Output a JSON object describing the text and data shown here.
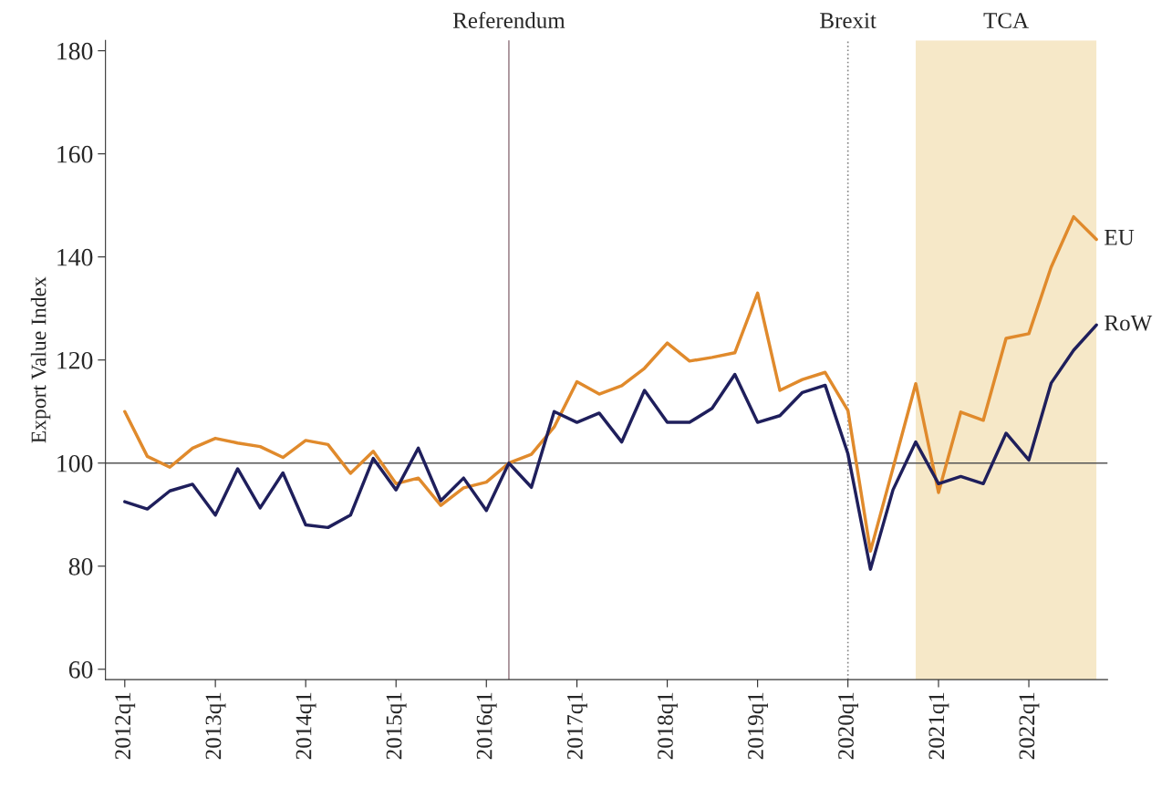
{
  "chart_data": {
    "type": "line",
    "ylabel": "Export Value Index",
    "x": [
      "2012-01",
      "2012-04",
      "2012-07",
      "2012-10",
      "2013-01",
      "2013-04",
      "2013-07",
      "2013-10",
      "2014-01",
      "2014-04",
      "2014-07",
      "2014-10",
      "2015-01",
      "2015-04",
      "2015-07",
      "2015-10",
      "2016-01",
      "2016-04",
      "2016-07",
      "2016-10",
      "2017-01",
      "2017-04",
      "2017-07",
      "2017-10",
      "2018-01",
      "2018-04",
      "2018-07",
      "2018-10",
      "2019-01",
      "2019-04",
      "2019-07",
      "2019-10",
      "2020-01",
      "2020-04",
      "2020-07",
      "2020-10",
      "2021-01",
      "2021-04",
      "2021-07",
      "2021-10",
      "2022-01",
      "2022-04",
      "2022-07",
      "2022-10"
    ],
    "xlim": [
      "2011-10-15",
      "2022-11-15"
    ],
    "xticks": [
      {
        "value": "2012-01",
        "label": "2012q1"
      },
      {
        "value": "2013-01",
        "label": "2013q1"
      },
      {
        "value": "2014-01",
        "label": "2014q1"
      },
      {
        "value": "2015-01",
        "label": "2015q1"
      },
      {
        "value": "2016-01",
        "label": "2016q1"
      },
      {
        "value": "2017-01",
        "label": "2017q1"
      },
      {
        "value": "2018-01",
        "label": "2018q1"
      },
      {
        "value": "2019-01",
        "label": "2019q1"
      },
      {
        "value": "2020-01",
        "label": "2020q1"
      },
      {
        "value": "2021-01",
        "label": "2021q1"
      },
      {
        "value": "2022-01",
        "label": "2022q1"
      }
    ],
    "series": [
      {
        "name": "EU",
        "color": "#e08a2c",
        "values": [
          110,
          101.3,
          99.2,
          102.9,
          104.8,
          103.9,
          103.2,
          101.1,
          104.4,
          103.6,
          98,
          102.3,
          96,
          97.1,
          91.8,
          95.2,
          96.3,
          100,
          101.7,
          107,
          115.8,
          113.4,
          115,
          118.4,
          123.3,
          119.8,
          120.5,
          121.4,
          133,
          114.1,
          116.2,
          117.6,
          110.2,
          82.9,
          99,
          115.4,
          94.3,
          109.9,
          108.3,
          124.2,
          125.1,
          138,
          147.8,
          143.4
        ]
      },
      {
        "name": "RoW",
        "color": "#1f1f5c",
        "values": [
          92.5,
          91.1,
          94.6,
          95.9,
          89.9,
          98.9,
          91.3,
          98.1,
          88,
          87.5,
          89.9,
          100.9,
          94.8,
          102.9,
          92.7,
          97.1,
          90.8,
          100,
          95.3,
          110,
          107.9,
          109.7,
          104.1,
          114.1,
          107.9,
          107.9,
          110.6,
          117.2,
          107.9,
          109.2,
          113.7,
          115.1,
          101.8,
          79.4,
          94.8,
          104.1,
          96,
          97.4,
          96,
          105.8,
          100.6,
          115.5,
          121.9,
          126.8
        ]
      }
    ],
    "ylim": [
      58,
      182
    ],
    "yticks": [
      60,
      80,
      100,
      120,
      140,
      160,
      180
    ],
    "ref_lines": [
      {
        "axis": "y",
        "value": 100,
        "label": null,
        "color": "#555555",
        "line_style": "solid"
      },
      {
        "axis": "x",
        "value": "2016-04",
        "label": "Referendum",
        "color": "#a08890",
        "line_style": "solid"
      },
      {
        "axis": "x",
        "value": "2020-01",
        "label": "Brexit",
        "color": "#888888",
        "line_style": "dotted"
      }
    ],
    "bands": [
      {
        "axis": "x",
        "from": "2020-10",
        "to": "2022-10",
        "label": "TCA",
        "color": "#f6e8c8"
      }
    ],
    "grid": false,
    "legend": false,
    "marker": "none",
    "line_style": "solid"
  }
}
